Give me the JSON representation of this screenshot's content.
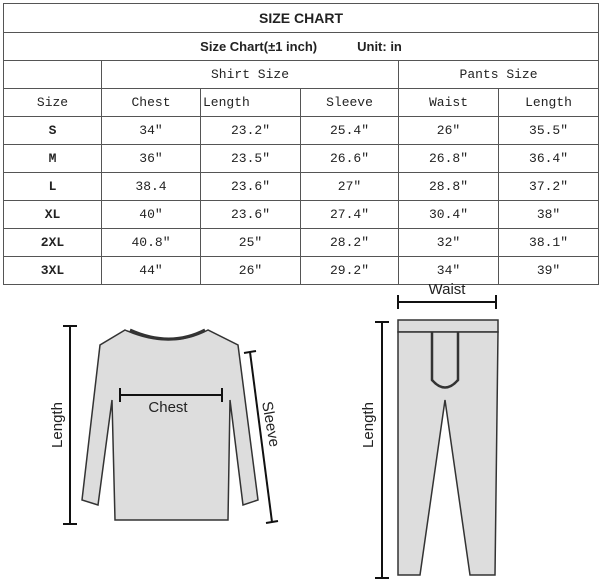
{
  "title": "SIZE CHART",
  "subtitle": "Size Chart(±1 inch)",
  "unit": "Unit: in",
  "group_headers": [
    "Shirt Size",
    "Pants Size"
  ],
  "columns": [
    "Size",
    "Chest",
    "Length",
    "Sleeve",
    "Waist",
    "Length"
  ],
  "rows": [
    [
      "S",
      "34″",
      "23.2″",
      "25.4″",
      "26″",
      "35.5″"
    ],
    [
      "M",
      "36″",
      "23.5″",
      "26.6″",
      "26.8″",
      "36.4″"
    ],
    [
      "L",
      "38.4",
      "23.6″",
      "27″",
      "28.8″",
      "37.2″"
    ],
    [
      "XL",
      "40″",
      "23.6″",
      "27.4″",
      "30.4″",
      "38″"
    ],
    [
      "2XL",
      "40.8″",
      "25″",
      "28.2″",
      "32″",
      "38.1″"
    ],
    [
      "3XL",
      "44″",
      "26″",
      "29.2″",
      "34″",
      "39″"
    ]
  ],
  "diagram": {
    "shirt_length": "Length",
    "chest": "Chest",
    "sleeve": "Sleeve",
    "waist": "Waist",
    "pants_length": "Length"
  }
}
